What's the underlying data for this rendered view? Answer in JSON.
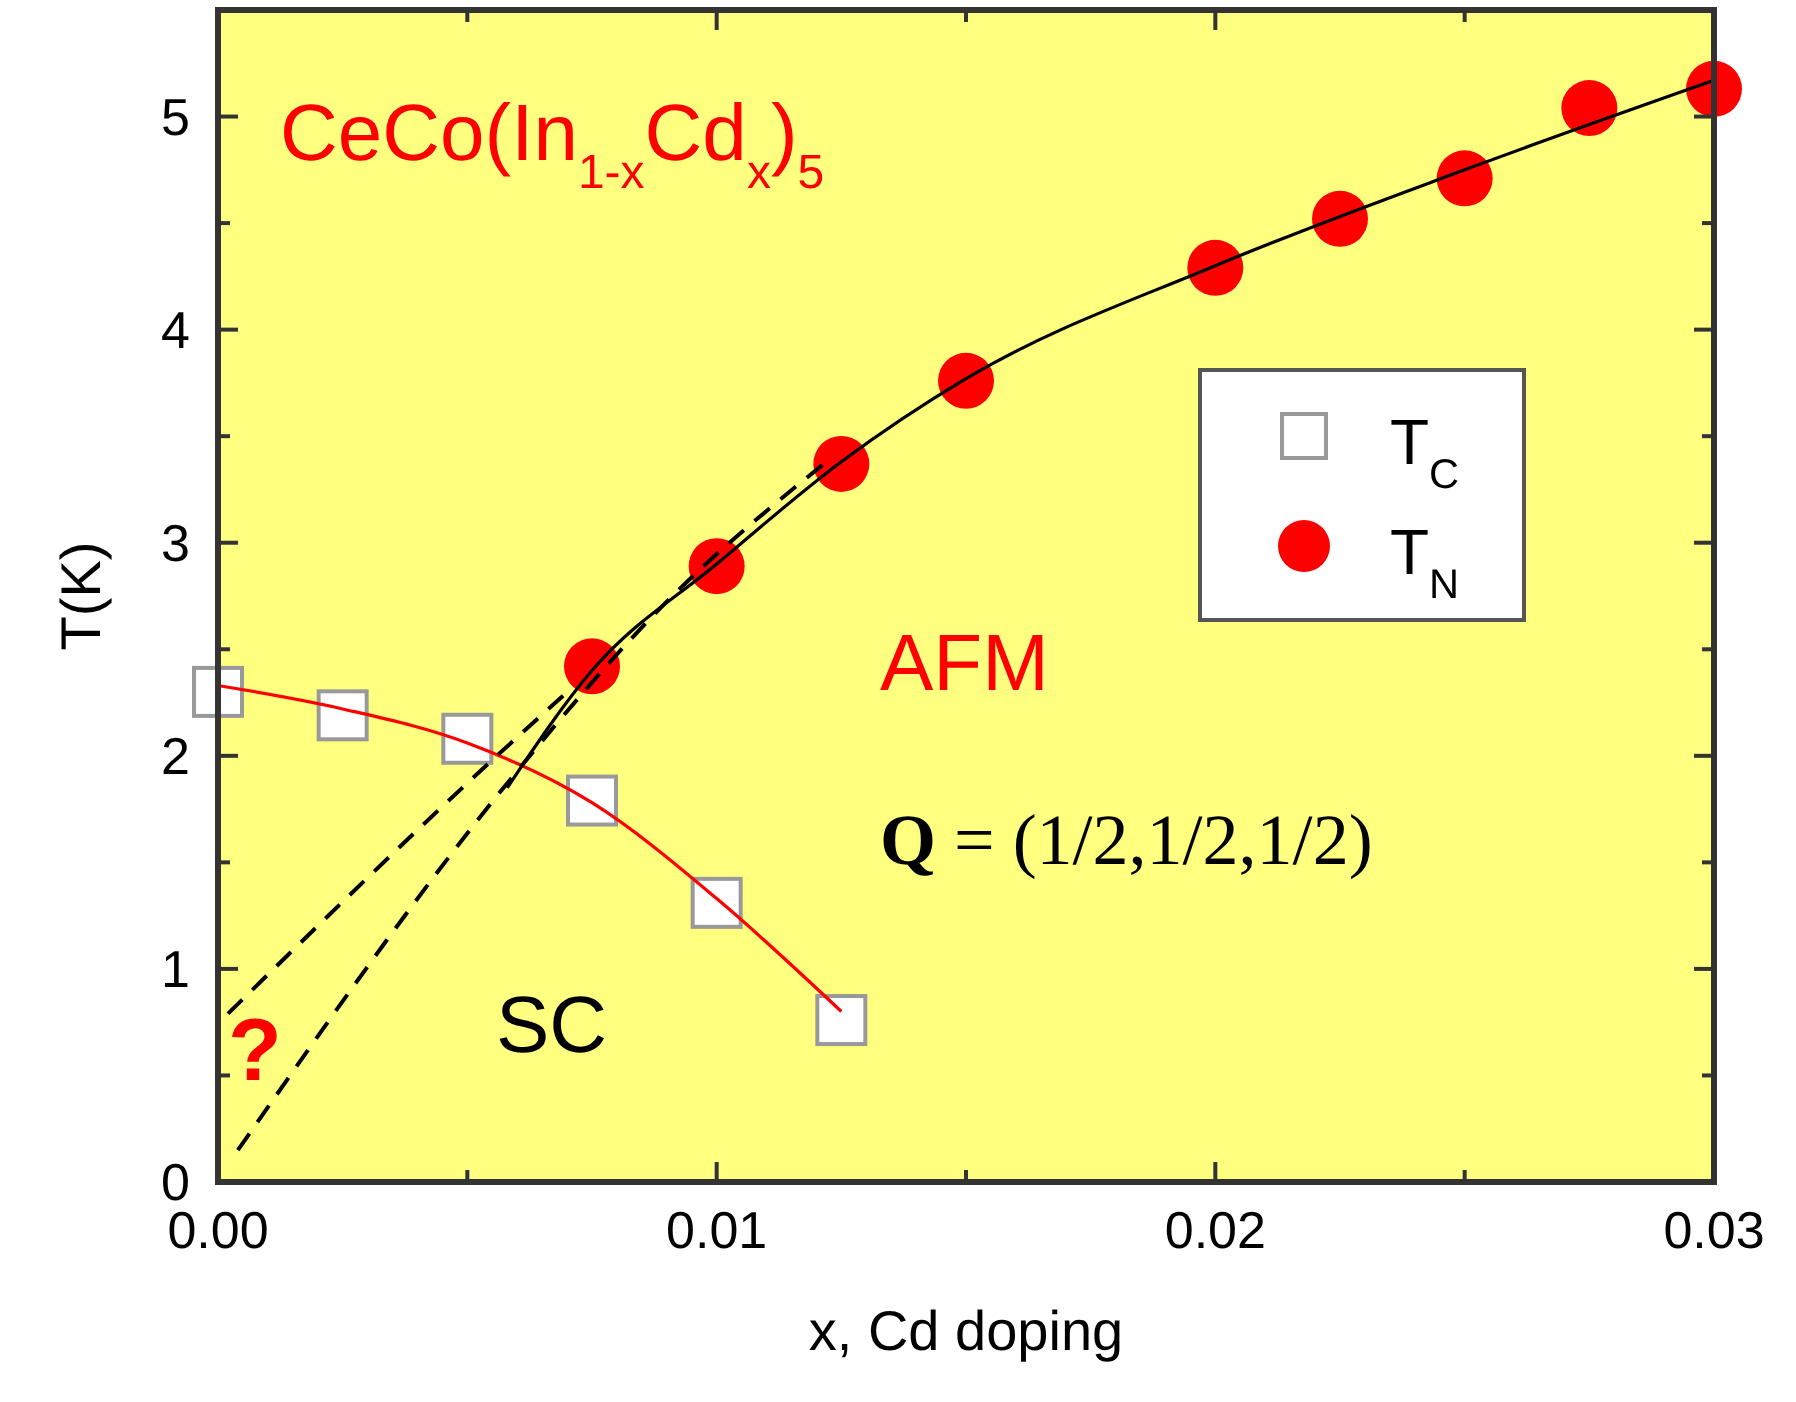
{
  "chart_data": {
    "type": "scatter",
    "xlabel": "x, Cd doping",
    "ylabel": "T(K)",
    "xlim": [
      0,
      0.03
    ],
    "ylim": [
      0,
      5.5
    ],
    "xticks": [
      {
        "value": 0,
        "label": "0.00"
      },
      {
        "value": 0.005,
        "label": null
      },
      {
        "value": 0.01,
        "label": "0.01"
      },
      {
        "value": 0.015,
        "label": null
      },
      {
        "value": 0.02,
        "label": "0.02"
      },
      {
        "value": 0.025,
        "label": null
      },
      {
        "value": 0.03,
        "label": "0.03"
      }
    ],
    "yticks": [
      0,
      {
        "value": 0.5,
        "label": null
      },
      1,
      {
        "value": 1.5,
        "label": null
      },
      2,
      {
        "value": 2.5,
        "label": null
      },
      3,
      {
        "value": 3.5,
        "label": null
      },
      4,
      {
        "value": 4.5,
        "label": null
      },
      5
    ],
    "grid": false,
    "legend": "right",
    "series": [
      {
        "type": "line",
        "color": "#ff0000",
        "line_style": "solid",
        "x": [
          0,
          0.0025,
          0.005,
          0.0075,
          0.01,
          0.0125
        ],
        "values": [
          2.33,
          2.22,
          2.06,
          1.78,
          1.33,
          0.8
        ]
      },
      {
        "type": "line",
        "color": "#000000",
        "line_style": "solid",
        "x": [
          0.0058,
          0.0075,
          0.01,
          0.0125,
          0.015,
          0.02,
          0.025,
          0.03
        ],
        "values": [
          1.85,
          2.4,
          2.9,
          3.38,
          3.77,
          4.3,
          4.75,
          5.17
        ]
      },
      {
        "type": "line",
        "color": "#000000",
        "line_style": "dashed",
        "x": [
          0.0004,
          0.0059,
          0.0089,
          0.0122
        ],
        "values": [
          0.15,
          1.9,
          2.7,
          3.38
        ]
      },
      {
        "type": "line",
        "color": "#000000",
        "line_style": "dashed",
        "x": [
          0.0002,
          0.0055,
          0.0071
        ],
        "values": [
          0.79,
          1.98,
          2.32
        ]
      },
      {
        "name": "T$_{C}$",
        "color": "#ffffff",
        "marker": "square",
        "x": [
          0,
          0.0025,
          0.005,
          0.0075,
          0.01,
          0.0125
        ],
        "values": [
          2.3,
          2.19,
          2.08,
          1.79,
          1.31,
          0.76
        ]
      },
      {
        "name": "T$_{N}$",
        "color": "#ff0000",
        "marker": "circle",
        "x": [
          0.0075,
          0.01,
          0.0125,
          0.015,
          0.02,
          0.0225,
          0.025,
          0.0275,
          0.03
        ],
        "values": [
          2.42,
          2.89,
          3.37,
          3.76,
          4.29,
          4.52,
          4.71,
          5.04,
          5.13
        ]
      }
    ],
    "annotations": [
      "CeCo(In$_{1-x}$Cd$_{x}$)$_{5}$",
      "AFM",
      "Q = (1/2,1/2,1/2)",
      "SC",
      "?"
    ]
  }
}
